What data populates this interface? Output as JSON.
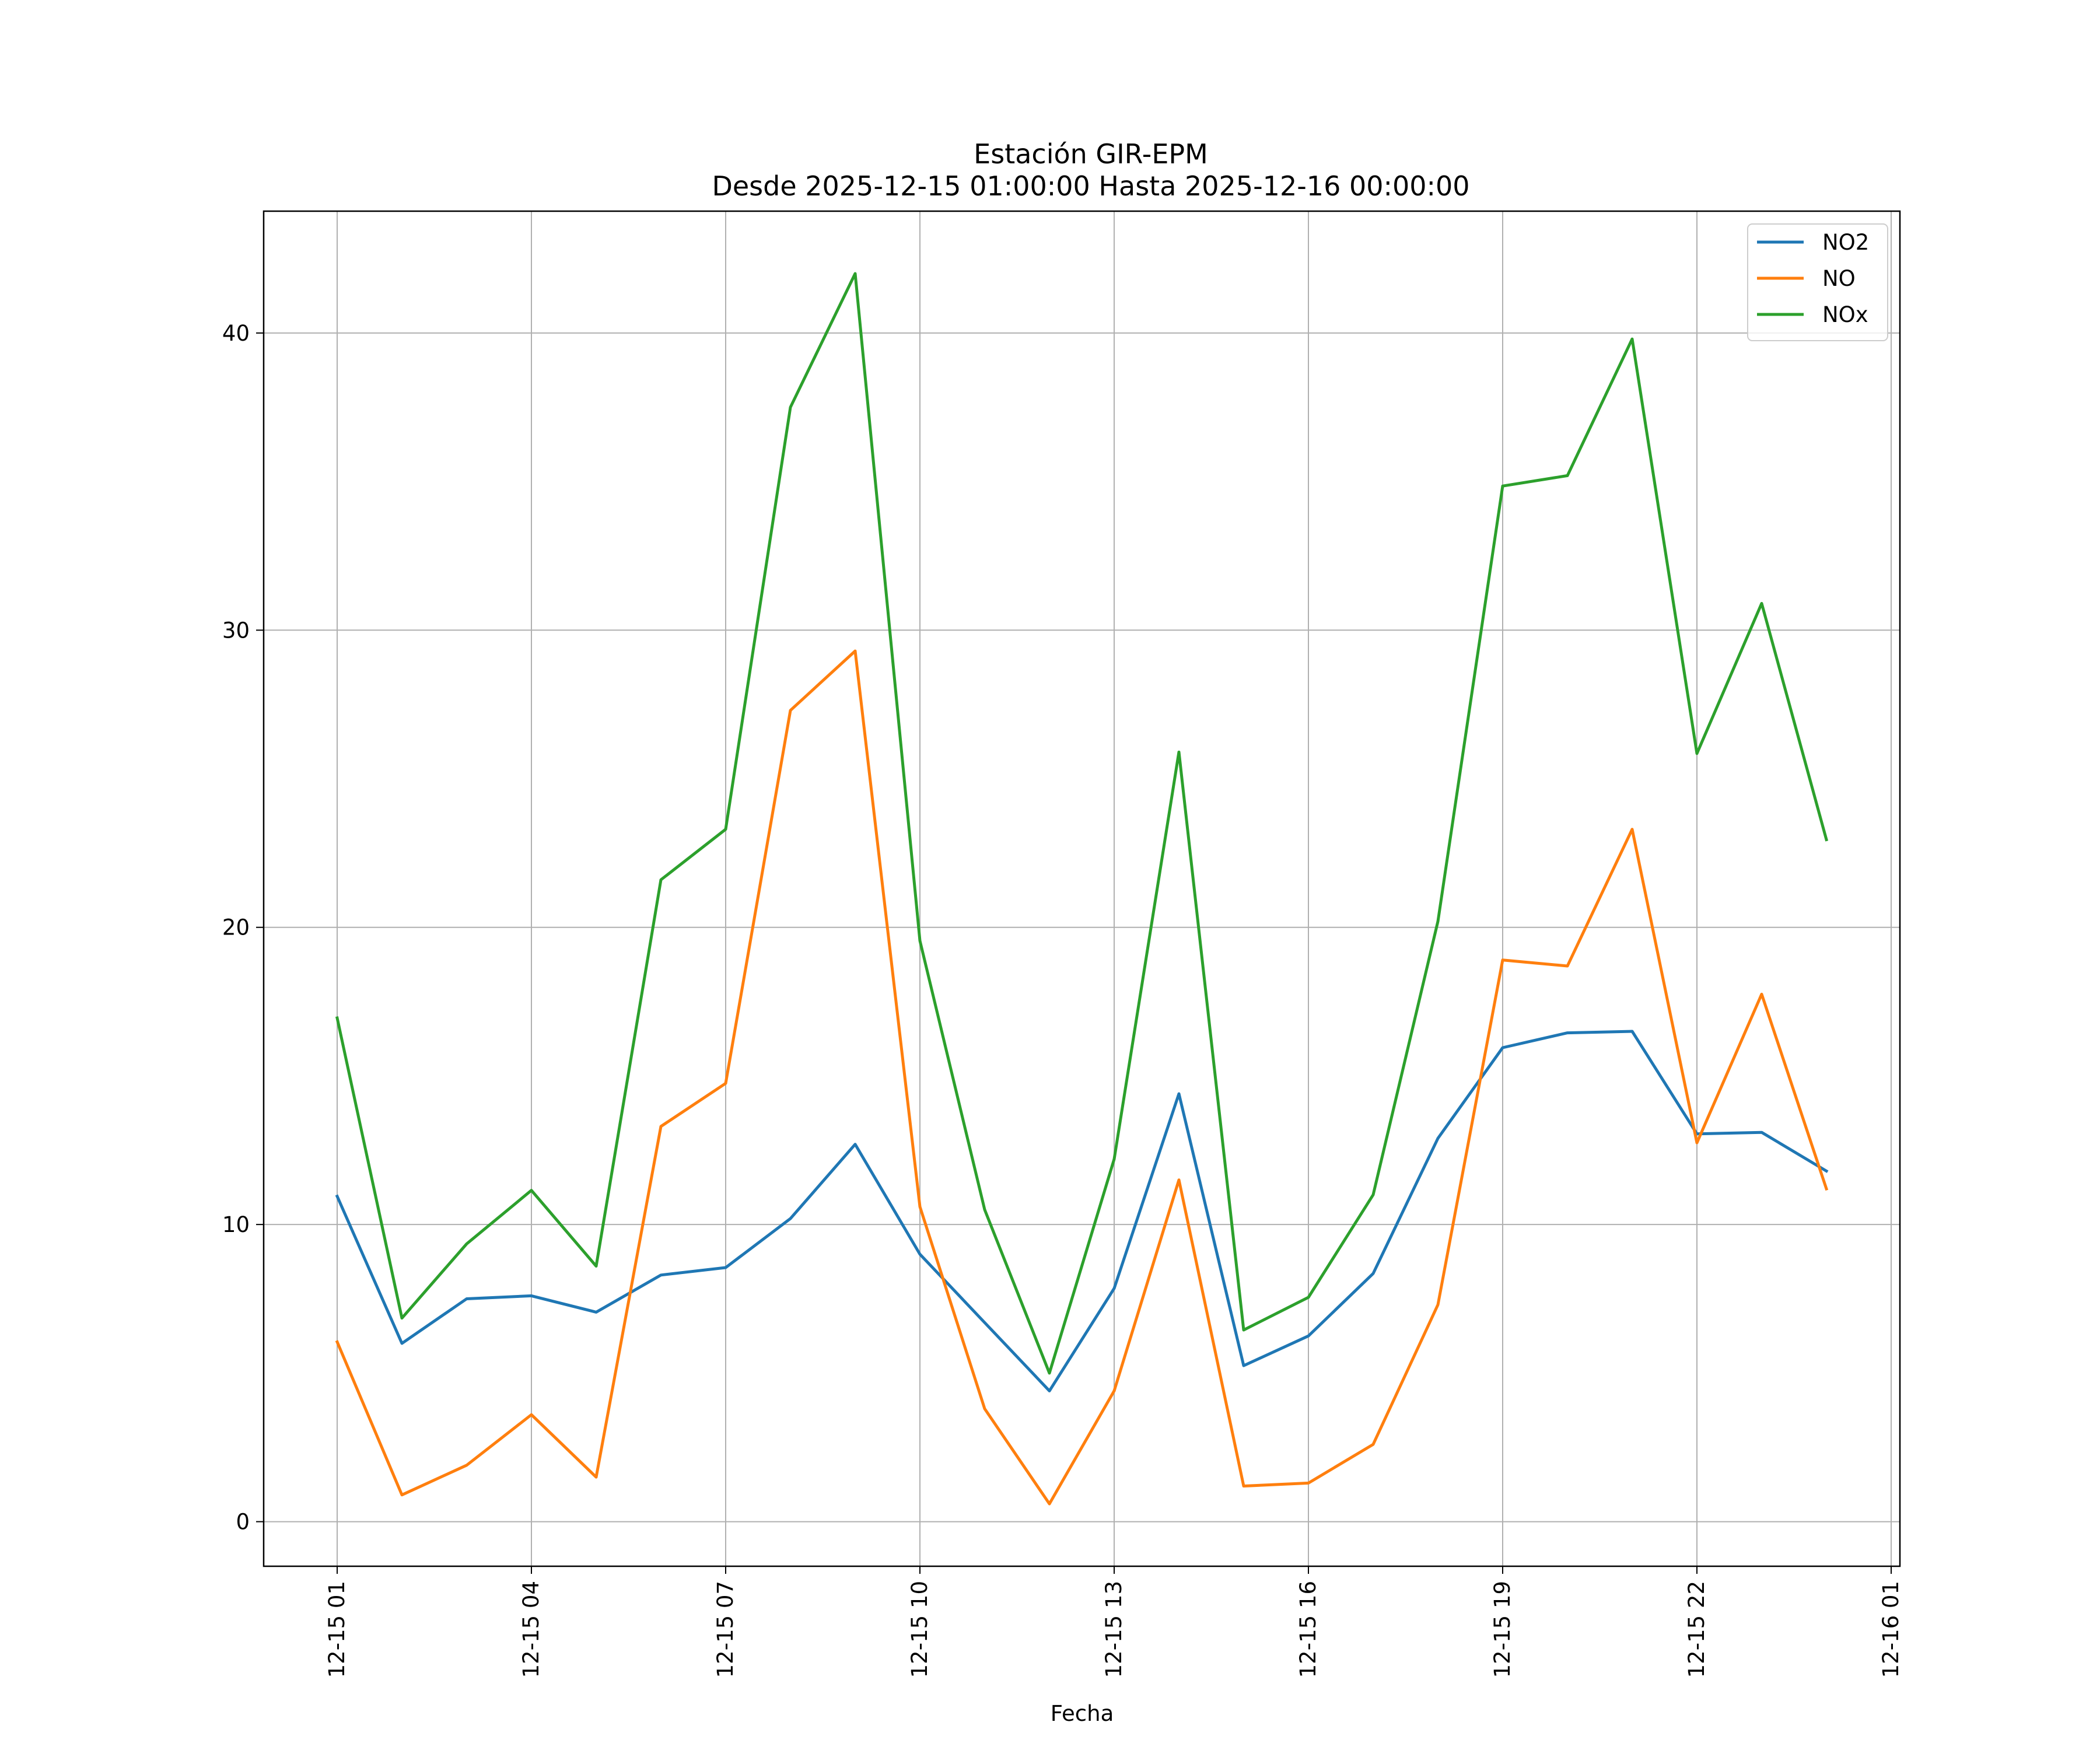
{
  "chart_data": {
    "type": "line",
    "title": "Estación GIR-EPM",
    "subtitle": "Desde 2025-12-15 01:00:00 Hasta 2025-12-16 00:00:00",
    "xlabel": "Fecha",
    "ylabel": "",
    "x_hours": [
      "2025-12-15 01:00",
      "2025-12-15 02:00",
      "2025-12-15 03:00",
      "2025-12-15 04:00",
      "2025-12-15 05:00",
      "2025-12-15 06:00",
      "2025-12-15 07:00",
      "2025-12-15 08:00",
      "2025-12-15 09:00",
      "2025-12-15 10:00",
      "2025-12-15 11:00",
      "2025-12-15 12:00",
      "2025-12-15 13:00",
      "2025-12-15 14:00",
      "2025-12-15 15:00",
      "2025-12-15 16:00",
      "2025-12-15 17:00",
      "2025-12-15 18:00",
      "2025-12-15 19:00",
      "2025-12-15 20:00",
      "2025-12-15 21:00",
      "2025-12-15 22:00",
      "2025-12-15 23:00",
      "2025-12-16 00:00"
    ],
    "x_ticks": [
      "12-15 01",
      "12-15 04",
      "12-15 07",
      "12-15 10",
      "12-15 13",
      "12-15 16",
      "12-15 19",
      "12-15 22",
      "12-16 01"
    ],
    "y_ticks": [
      "0",
      "10",
      "20",
      "30",
      "40"
    ],
    "ylim": [
      -1.5,
      44.1
    ],
    "grid": true,
    "legend": "top-right",
    "series": [
      {
        "name": "NO2",
        "color": "#1f77b4",
        "values": [
          10.95,
          6.0,
          7.5,
          7.6,
          7.05,
          8.3,
          8.55,
          10.2,
          12.7,
          9.0,
          6.7,
          4.4,
          7.85,
          14.4,
          5.25,
          6.25,
          8.35,
          12.9,
          15.95,
          16.45,
          16.5,
          13.05,
          13.1,
          11.8
        ]
      },
      {
        "name": "NO",
        "color": "#ff7f0e",
        "values": [
          6.05,
          0.9,
          1.9,
          3.6,
          1.5,
          13.3,
          14.75,
          27.3,
          29.3,
          10.6,
          3.8,
          0.6,
          4.4,
          11.5,
          1.2,
          1.3,
          2.6,
          7.3,
          18.9,
          18.7,
          23.3,
          12.75,
          17.75,
          11.2
        ]
      },
      {
        "name": "NOx",
        "color": "#2ca02c",
        "values": [
          16.95,
          6.85,
          9.35,
          11.15,
          8.6,
          21.6,
          23.3,
          37.5,
          42.0,
          19.55,
          10.5,
          5.0,
          12.2,
          25.9,
          6.45,
          7.55,
          11.0,
          20.2,
          34.85,
          35.2,
          39.8,
          25.85,
          30.9,
          22.95
        ]
      }
    ]
  }
}
